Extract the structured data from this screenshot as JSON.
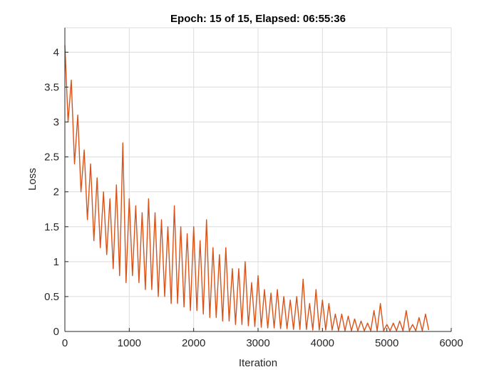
{
  "chart_data": {
    "type": "line",
    "title": "Epoch: 15 of 15, Elapsed: 06:55:36",
    "xlabel": "Iteration",
    "ylabel": "Loss",
    "xlim": [
      0,
      6000
    ],
    "ylim": [
      0,
      4.35
    ],
    "xticks": [
      0,
      1000,
      2000,
      3000,
      4000,
      5000,
      6000
    ],
    "yticks": [
      0,
      0.5,
      1,
      1.5,
      2,
      2.5,
      3,
      3.5,
      4
    ],
    "xtick_labels": [
      "0",
      "1000",
      "2000",
      "3000",
      "4000",
      "5000",
      "6000"
    ],
    "ytick_labels": [
      "0",
      "0.5",
      "1",
      "1.5",
      "2",
      "2.5",
      "3",
      "3.5",
      "4"
    ],
    "grid": true,
    "color": "#D95319",
    "series": [
      {
        "name": "Loss",
        "x_start": 0,
        "x_step": 50,
        "values": [
          4.1,
          3.0,
          3.6,
          2.4,
          3.1,
          2.0,
          2.6,
          1.6,
          2.4,
          1.3,
          2.2,
          1.2,
          2.0,
          1.1,
          1.9,
          0.9,
          2.1,
          0.8,
          2.7,
          0.7,
          1.9,
          0.8,
          1.8,
          0.7,
          1.7,
          0.6,
          1.9,
          0.6,
          1.7,
          0.5,
          1.6,
          0.5,
          1.5,
          0.4,
          1.8,
          0.4,
          1.5,
          0.35,
          1.4,
          0.3,
          1.5,
          0.3,
          1.3,
          0.25,
          1.6,
          0.2,
          1.2,
          0.2,
          1.1,
          0.15,
          1.2,
          0.15,
          0.9,
          0.1,
          0.9,
          0.1,
          1.0,
          0.08,
          0.7,
          0.07,
          0.8,
          0.06,
          0.6,
          0.05,
          0.55,
          0.05,
          0.6,
          0.04,
          0.5,
          0.04,
          0.45,
          0.03,
          0.5,
          0.03,
          0.75,
          0.03,
          0.4,
          0.02,
          0.6,
          0.02,
          0.45,
          0.02,
          0.4,
          0.02,
          0.25,
          0.01,
          0.25,
          0.01,
          0.22,
          0.01,
          0.18,
          0.01,
          0.15,
          0.01,
          0.12,
          0.01,
          0.3,
          0.01,
          0.4,
          0.01,
          0.1,
          0.01,
          0.12,
          0.01,
          0.15,
          0.01,
          0.3,
          0.01,
          0.1,
          0.01,
          0.2,
          0.01,
          0.25,
          0.02
        ]
      }
    ]
  }
}
